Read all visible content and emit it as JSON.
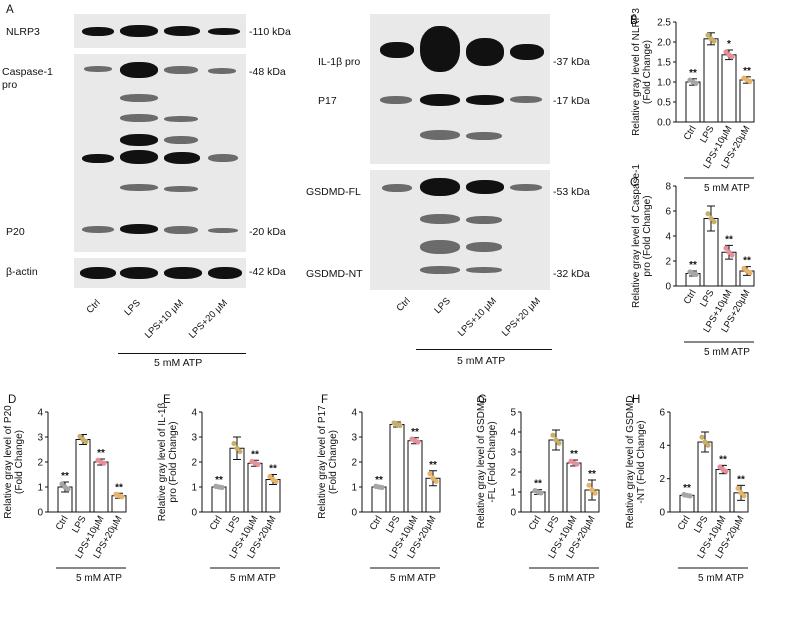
{
  "figure": {
    "panel_letters": [
      "A",
      "B",
      "C",
      "D",
      "E",
      "F",
      "G",
      "H"
    ],
    "blot_left": {
      "rows": [
        {
          "label": "NLRP3",
          "kda": "-110 kDa"
        },
        {
          "label": "Caspase-1\npro",
          "kda": "-48 kDa"
        },
        {
          "label": "P20",
          "kda": "-20 kDa"
        },
        {
          "label": "β-actin",
          "kda": "-42 kDa"
        }
      ],
      "lanes": [
        "Ctrl",
        "LPS",
        "LPS+10 μM",
        "LPS+20 μM"
      ],
      "treatment": "5 mM ATP"
    },
    "blot_right": {
      "rows": [
        {
          "label": "IL-1β pro",
          "kda": "-37 kDa"
        },
        {
          "label": "P17",
          "kda": "-17 kDa"
        },
        {
          "label": "GSDMD-FL",
          "kda": "-53 kDa"
        },
        {
          "label": "GSDMD-NT",
          "kda": "-32 kDa"
        }
      ],
      "lanes": [
        "Ctrl",
        "LPS",
        "LPS+10 μM",
        "LPS+20 μM"
      ],
      "treatment": "5 mM ATP"
    }
  },
  "chart_data": [
    {
      "panel": "B",
      "type": "bar",
      "ylabel": "Relative gray level of NLRP3\n(Fold Change)",
      "categories": [
        "Ctrl",
        "LPS",
        "LPS+10μM",
        "LPS+20μM"
      ],
      "values": [
        1.0,
        2.08,
        1.68,
        1.05
      ],
      "errors": [
        0.08,
        0.15,
        0.12,
        0.08
      ],
      "sig": [
        "**",
        "",
        "*",
        "**"
      ],
      "ylim": [
        0,
        2.5
      ],
      "yticks": [
        "0.0",
        "0.5",
        "1.0",
        "1.5",
        "2.0",
        "2.5"
      ],
      "xgroup_label": "5 mM ATP",
      "point_colors": [
        "#a6a6a6",
        "#c9b06a",
        "#e8909a",
        "#e8b46a"
      ]
    },
    {
      "panel": "C",
      "type": "bar",
      "ylabel": "Relative gray level of Caspase-1\npro (Fold Change)",
      "categories": [
        "Ctrl",
        "LPS",
        "LPS+10μM",
        "LPS+20μM"
      ],
      "values": [
        1.0,
        5.4,
        2.7,
        1.2
      ],
      "errors": [
        0.2,
        1.0,
        0.55,
        0.35
      ],
      "sig": [
        "**",
        "",
        "**",
        "**"
      ],
      "ylim": [
        0,
        8
      ],
      "yticks": [
        "0",
        "2",
        "4",
        "6",
        "8"
      ],
      "xgroup_label": "5 mM ATP",
      "point_colors": [
        "#a6a6a6",
        "#c9b06a",
        "#e8909a",
        "#e8b46a"
      ]
    },
    {
      "panel": "D",
      "type": "bar",
      "ylabel": "Relative gray level of P20\n(Fold Change)",
      "categories": [
        "Ctrl",
        "LPS",
        "LPS+10μM",
        "LPS+20μM"
      ],
      "values": [
        1.0,
        2.9,
        2.0,
        0.65
      ],
      "errors": [
        0.2,
        0.2,
        0.12,
        0.1
      ],
      "sig": [
        "**",
        "",
        "**",
        "**"
      ],
      "ylim": [
        0,
        4
      ],
      "yticks": [
        "0",
        "1",
        "2",
        "3",
        "4"
      ],
      "xgroup_label": "5 mM ATP",
      "point_colors": [
        "#a6a6a6",
        "#c9b06a",
        "#e8909a",
        "#e8b46a"
      ]
    },
    {
      "panel": "E",
      "type": "bar",
      "ylabel": "Relative gray level of IL-1β\npro (Fold Change)",
      "categories": [
        "Ctrl",
        "LPS",
        "LPS+10μM",
        "LPS+20μM"
      ],
      "values": [
        1.0,
        2.55,
        1.95,
        1.3
      ],
      "errors": [
        0.05,
        0.45,
        0.12,
        0.2
      ],
      "sig": [
        "**",
        "",
        "**",
        "**"
      ],
      "ylim": [
        0,
        4
      ],
      "yticks": [
        "0",
        "1",
        "2",
        "3",
        "4"
      ],
      "xgroup_label": "5 mM ATP",
      "point_colors": [
        "#a6a6a6",
        "#c9b06a",
        "#e8909a",
        "#e8b46a"
      ]
    },
    {
      "panel": "F",
      "type": "bar",
      "ylabel": "Relative gray level of P17\n(Fold Change)",
      "categories": [
        "Ctrl",
        "LPS",
        "LPS+10μM",
        "LPS+20μM"
      ],
      "values": [
        1.0,
        3.5,
        2.85,
        1.35
      ],
      "errors": [
        0.05,
        0.1,
        0.12,
        0.3
      ],
      "sig": [
        "**",
        "",
        "**",
        "**"
      ],
      "ylim": [
        0,
        4
      ],
      "yticks": [
        "0",
        "1",
        "2",
        "3",
        "4"
      ],
      "xgroup_label": "5 mM ATP",
      "point_colors": [
        "#a6a6a6",
        "#c9b06a",
        "#e8909a",
        "#e8b46a"
      ]
    },
    {
      "panel": "G",
      "type": "bar",
      "ylabel": "Relative gray level of GSDMD\n-FL (Fold Change)",
      "categories": [
        "Ctrl",
        "LPS",
        "LPS+10μM",
        "LPS+20μM"
      ],
      "values": [
        1.0,
        3.6,
        2.45,
        1.1
      ],
      "errors": [
        0.12,
        0.5,
        0.15,
        0.5
      ],
      "sig": [
        "**",
        "",
        "**",
        "**"
      ],
      "ylim": [
        0,
        5
      ],
      "yticks": [
        "0",
        "1",
        "2",
        "3",
        "4",
        "5"
      ],
      "xgroup_label": "5 mM ATP",
      "point_colors": [
        "#a6a6a6",
        "#c9b06a",
        "#e8909a",
        "#e8b46a"
      ]
    },
    {
      "panel": "H",
      "type": "bar",
      "ylabel": "Relative gray level of GSDMD\n-NT (Fold Change)",
      "categories": [
        "Ctrl",
        "LPS",
        "LPS+10μM",
        "LPS+20μM"
      ],
      "values": [
        1.0,
        4.2,
        2.55,
        1.15
      ],
      "errors": [
        0.08,
        0.6,
        0.25,
        0.45
      ],
      "sig": [
        "**",
        "",
        "**",
        "**"
      ],
      "ylim": [
        0,
        6
      ],
      "yticks": [
        "0",
        "2",
        "4",
        "6"
      ],
      "xgroup_label": "5 mM ATP",
      "point_colors": [
        "#a6a6a6",
        "#c9b06a",
        "#e8909a",
        "#e8b46a"
      ]
    }
  ]
}
